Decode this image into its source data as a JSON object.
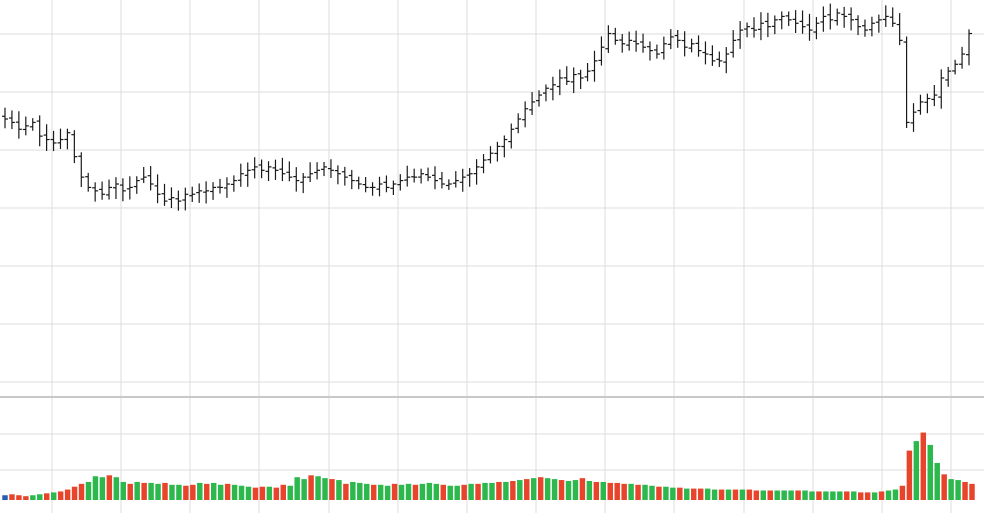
{
  "chart_data": [
    {
      "type": "ohlc",
      "title": "",
      "xlabel": "",
      "ylabel": "",
      "ylim": [
        0,
        100
      ],
      "grid": true,
      "legend": "none",
      "bar_count": 140,
      "colors": {
        "bar": "#1a1a1a",
        "grid": "#dcdcdc",
        "background": "#ffffff"
      },
      "close": [
        69,
        68,
        66,
        67,
        68,
        64,
        63,
        62,
        63,
        65,
        58,
        52,
        49,
        48,
        47,
        49,
        50,
        48,
        49,
        51,
        52,
        50,
        47,
        45,
        46,
        45,
        47,
        47,
        48,
        48,
        49,
        49,
        50,
        51,
        53,
        54,
        55,
        54,
        55,
        54,
        53,
        52,
        51,
        52,
        53,
        54,
        55,
        54,
        53,
        52,
        51,
        50,
        49,
        49,
        50,
        49,
        50,
        51,
        52,
        52,
        53,
        52,
        51,
        50,
        50,
        51,
        52,
        53,
        55,
        57,
        59,
        61,
        63,
        66,
        69,
        72,
        74,
        76,
        78,
        79,
        81,
        80,
        82,
        81,
        83,
        86,
        90,
        94,
        92,
        91,
        92,
        91,
        90,
        89,
        88,
        91,
        93,
        92,
        90,
        91,
        89,
        88,
        86,
        86,
        88,
        92,
        95,
        96,
        95,
        97,
        96,
        98,
        99,
        98,
        97,
        96,
        95,
        97,
        99,
        98,
        100,
        99,
        98,
        96,
        95,
        97,
        98,
        99,
        97,
        92,
        68,
        71,
        74,
        75,
        76,
        81,
        83,
        85,
        88,
        94
      ],
      "volume": {
        "ylim": [
          0,
          100
        ],
        "colors": {
          "up": "#2db84d",
          "down": "#e8432b",
          "first": "#2a5db0"
        },
        "values": [
          5,
          6,
          5,
          4,
          5,
          6,
          7,
          8,
          9,
          11,
          14,
          17,
          19,
          25,
          24,
          26,
          24,
          19,
          17,
          19,
          18,
          18,
          17,
          18,
          16,
          16,
          15,
          16,
          18,
          17,
          18,
          16,
          17,
          16,
          15,
          14,
          13,
          14,
          14,
          13,
          16,
          15,
          24,
          22,
          26,
          25,
          23,
          22,
          21,
          17,
          19,
          18,
          17,
          16,
          16,
          15,
          17,
          16,
          17,
          16,
          17,
          18,
          17,
          16,
          15,
          15,
          16,
          17,
          17,
          18,
          18,
          19,
          19,
          20,
          21,
          22,
          23,
          24,
          23,
          22,
          21,
          20,
          21,
          23,
          20,
          19,
          19,
          18,
          18,
          17,
          17,
          16,
          16,
          15,
          14,
          14,
          13,
          13,
          12,
          12,
          12,
          12,
          11,
          11,
          11,
          11,
          11,
          11,
          10,
          10,
          10,
          10,
          10,
          10,
          10,
          10,
          9,
          9,
          9,
          9,
          9,
          9,
          9,
          8,
          8,
          8,
          9,
          10,
          11,
          15,
          52,
          62,
          71,
          58,
          39,
          27,
          22,
          21,
          19,
          17
        ],
        "up": [
          0,
          0,
          0,
          0,
          1,
          1,
          0,
          1,
          0,
          0,
          0,
          0,
          1,
          1,
          1,
          0,
          1,
          1,
          0,
          1,
          0,
          1,
          1,
          0,
          1,
          1,
          0,
          0,
          1,
          0,
          1,
          1,
          0,
          1,
          1,
          1,
          0,
          0,
          1,
          0,
          0,
          1,
          1,
          1,
          0,
          1,
          1,
          0,
          1,
          0,
          1,
          1,
          1,
          0,
          1,
          1,
          0,
          1,
          1,
          0,
          1,
          1,
          1,
          0,
          1,
          1,
          0,
          1,
          0,
          1,
          1,
          0,
          1,
          0,
          1,
          0,
          1,
          0,
          1,
          1,
          0,
          1,
          1,
          0,
          1,
          0,
          1,
          0,
          0,
          0,
          1,
          0,
          1,
          1,
          0,
          1,
          1,
          0,
          1,
          0,
          0,
          1,
          1,
          0,
          1,
          0,
          1,
          0,
          0,
          1,
          0,
          1,
          1,
          1,
          0,
          1,
          1,
          0,
          1,
          1,
          1,
          0,
          1,
          0,
          0,
          1,
          0,
          1,
          1,
          0,
          0,
          1,
          0,
          1,
          1,
          0,
          1,
          1,
          0,
          0
        ]
      }
    }
  ]
}
